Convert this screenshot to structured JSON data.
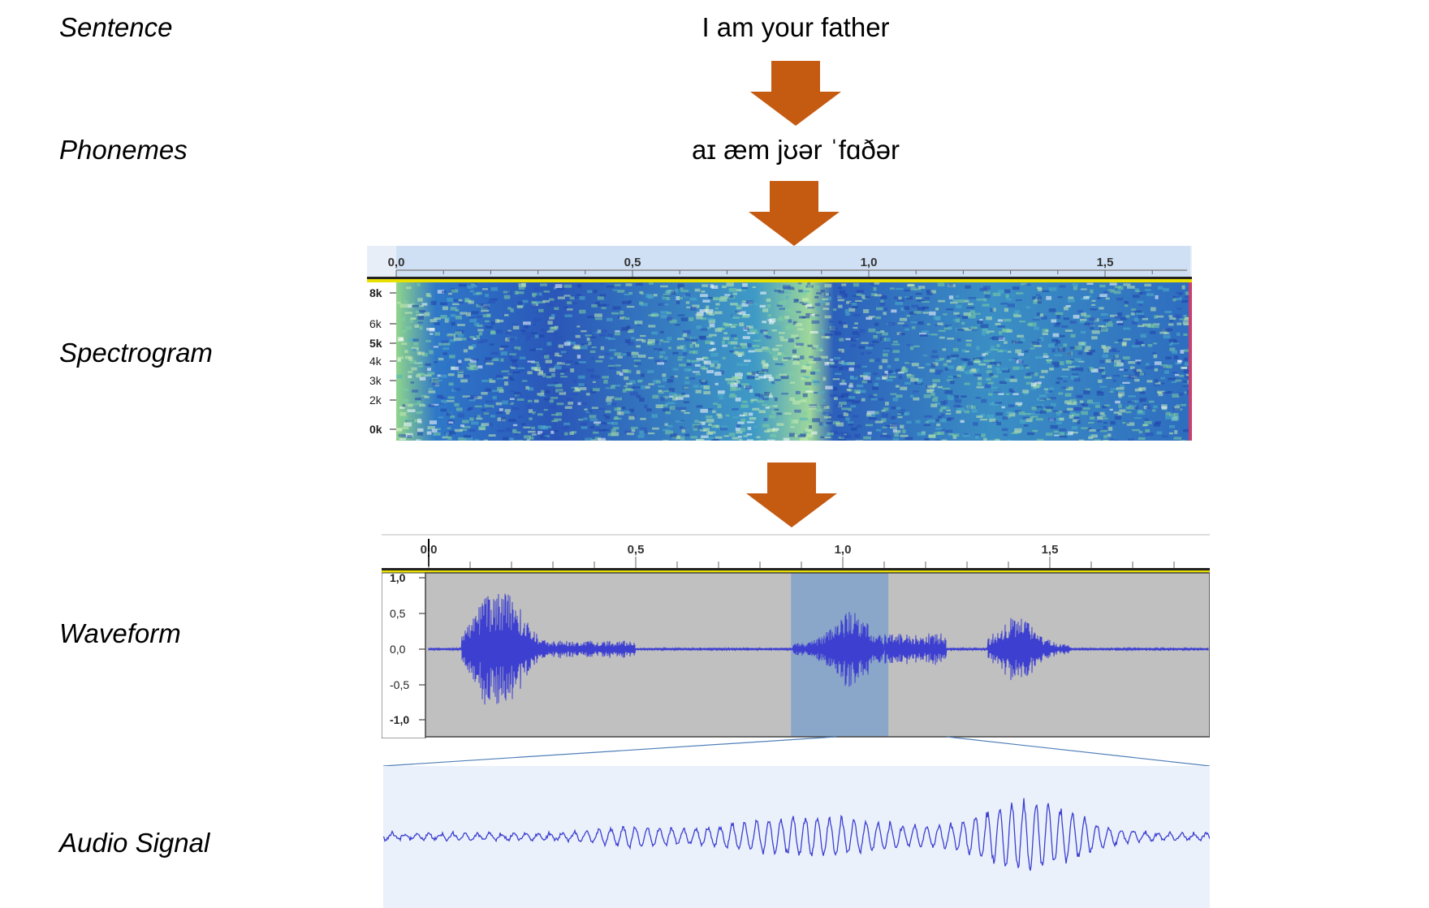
{
  "labels": {
    "sentence": "Sentence",
    "phonemes": "Phonemes",
    "spectrogram": "Spectrogram",
    "waveform": "Waveform",
    "audio_signal": "Audio Signal"
  },
  "sentence_text": "I am your father",
  "phonemes_text": "aɪ æm jʊər ˈfɑðər",
  "arrow_color": "#c55a11",
  "spectrogram": {
    "time_ticks": [
      "0,0",
      "0,5",
      "1,0",
      "1,5"
    ],
    "freq_ticks": [
      "8k",
      "6k",
      "5k",
      "4k",
      "3k",
      "2k",
      "0k"
    ]
  },
  "waveform": {
    "time_ticks": [
      "0,0",
      "0,5",
      "1,0",
      "1,5"
    ],
    "amp_ticks": [
      "1,0",
      "0,5",
      "0,0",
      "-0,5",
      "-1,0"
    ],
    "selection": [
      0.875,
      1.11
    ]
  },
  "colors": {
    "wave": "#3d3fd0",
    "wave_bg": "#c0c0c0",
    "selection": "#8aa6c8",
    "signal_bg": "#eaf1fb"
  }
}
